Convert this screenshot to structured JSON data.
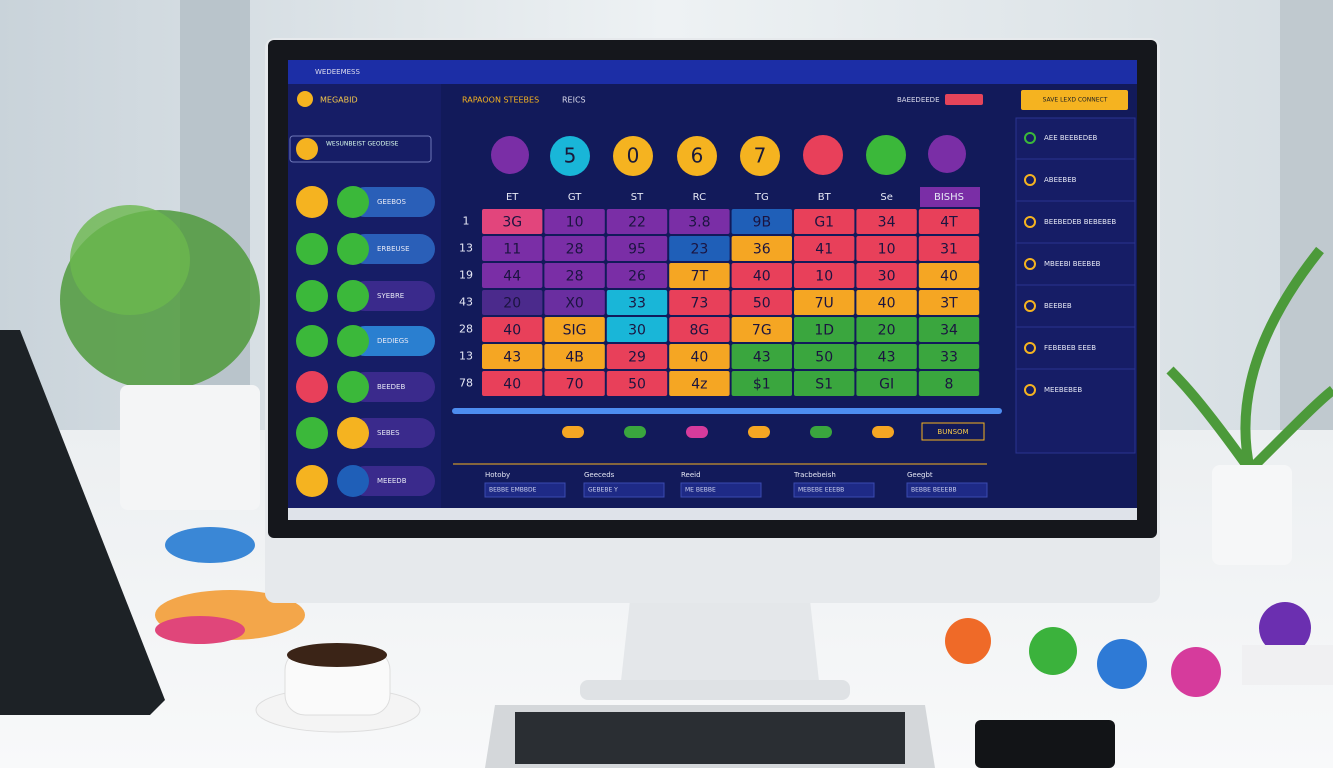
{
  "topbar": {
    "title": "WEDEEMESS"
  },
  "sidebar": {
    "brand": "MEGABID",
    "search": "WESUNBEIST GEODEISE",
    "items": [
      "GEEBOS",
      "ERBEUSE",
      "SYEBRE",
      "DEDIEGS",
      "BEEDEB",
      "SEBES",
      "MEEEDB"
    ]
  },
  "header": {
    "title": "RAPAOON STEEBES",
    "tag": "REICS",
    "status": "BAEEDEEDE"
  },
  "balls": [
    "5",
    "0",
    "6",
    "7"
  ],
  "grid": {
    "columns": [
      "ET",
      "GT",
      "ST",
      "RC",
      "TG",
      "BT",
      "Se",
      "BISHS"
    ],
    "row_labels": [
      "1",
      "13",
      "19",
      "43",
      "28",
      "13",
      "78"
    ],
    "rows": [
      [
        "3G",
        "10",
        "22",
        "3.8",
        "9B",
        "G1",
        "34",
        "4T"
      ],
      [
        "11",
        "28",
        "95",
        "23",
        "36",
        "41",
        "10",
        "31"
      ],
      [
        "44",
        "28",
        "26",
        "7T",
        "40",
        "10",
        "30",
        "40"
      ],
      [
        "20",
        "X0",
        "33",
        "73",
        "50",
        "7U",
        "40",
        "3T"
      ],
      [
        "40",
        "SIG",
        "30",
        "8G",
        "7G",
        "1D",
        "20",
        "34"
      ],
      [
        "43",
        "4B",
        "29",
        "40",
        "43",
        "50",
        "43",
        "33"
      ],
      [
        "40",
        "70",
        "50",
        "4z",
        "$1",
        "S1",
        "GI",
        "8"
      ]
    ],
    "colors": [
      [
        "#e2457c",
        "#7a2ea6",
        "#7a2ea6",
        "#7a2ea6",
        "#1f5fb8",
        "#e8405a",
        "#e8405a",
        "#e8405a"
      ],
      [
        "#7a2ea6",
        "#7a2ea6",
        "#7a2ea6",
        "#1f5fb8",
        "#f5a623",
        "#e8405a",
        "#e8405a",
        "#e8405a"
      ],
      [
        "#7a2ea6",
        "#7a2ea6",
        "#7a2ea6",
        "#f5a623",
        "#e8405a",
        "#e8405a",
        "#e8405a",
        "#f5a623"
      ],
      [
        "#4b2a8c",
        "#6a2ea0",
        "#19b6d8",
        "#e8405a",
        "#e8405a",
        "#f5a623",
        "#f5a623",
        "#f5a623"
      ],
      [
        "#e8405a",
        "#f5a623",
        "#19b6d8",
        "#e8405a",
        "#f5a623",
        "#3aa63e",
        "#3aa63e",
        "#3aa63e"
      ],
      [
        "#f5a623",
        "#f5a623",
        "#e8405a",
        "#f5a623",
        "#3aa63e",
        "#3aa63e",
        "#3aa63e",
        "#3aa63e"
      ],
      [
        "#e8405a",
        "#e8405a",
        "#e8405a",
        "#f5a623",
        "#3aa63e",
        "#3aa63e",
        "#3aa63e",
        "#3aa63e"
      ]
    ]
  },
  "action": "BUNSOM",
  "fields": [
    {
      "label": "Hotoby",
      "value": "BEBBE EMBBDE"
    },
    {
      "label": "Geeceds",
      "value": "GEBEBE Y"
    },
    {
      "label": "Reeid",
      "value": "ME BEBBE"
    },
    {
      "label": "Tracbebeish",
      "value": "MEBEBE EEEBB"
    },
    {
      "label": "Geegbt",
      "value": "BEBBE BEEEBB"
    }
  ],
  "right_panel": {
    "button": "SAVE LEXD CONNECT",
    "items": [
      "AEE BEEBEDEB",
      "ABEEBEB",
      "BEEBEDEB BEBEBEB",
      "MBEEBI BEEBEB",
      "BEEBEB",
      "FEBEBEB EEEB",
      "MEEBEBEB"
    ]
  }
}
